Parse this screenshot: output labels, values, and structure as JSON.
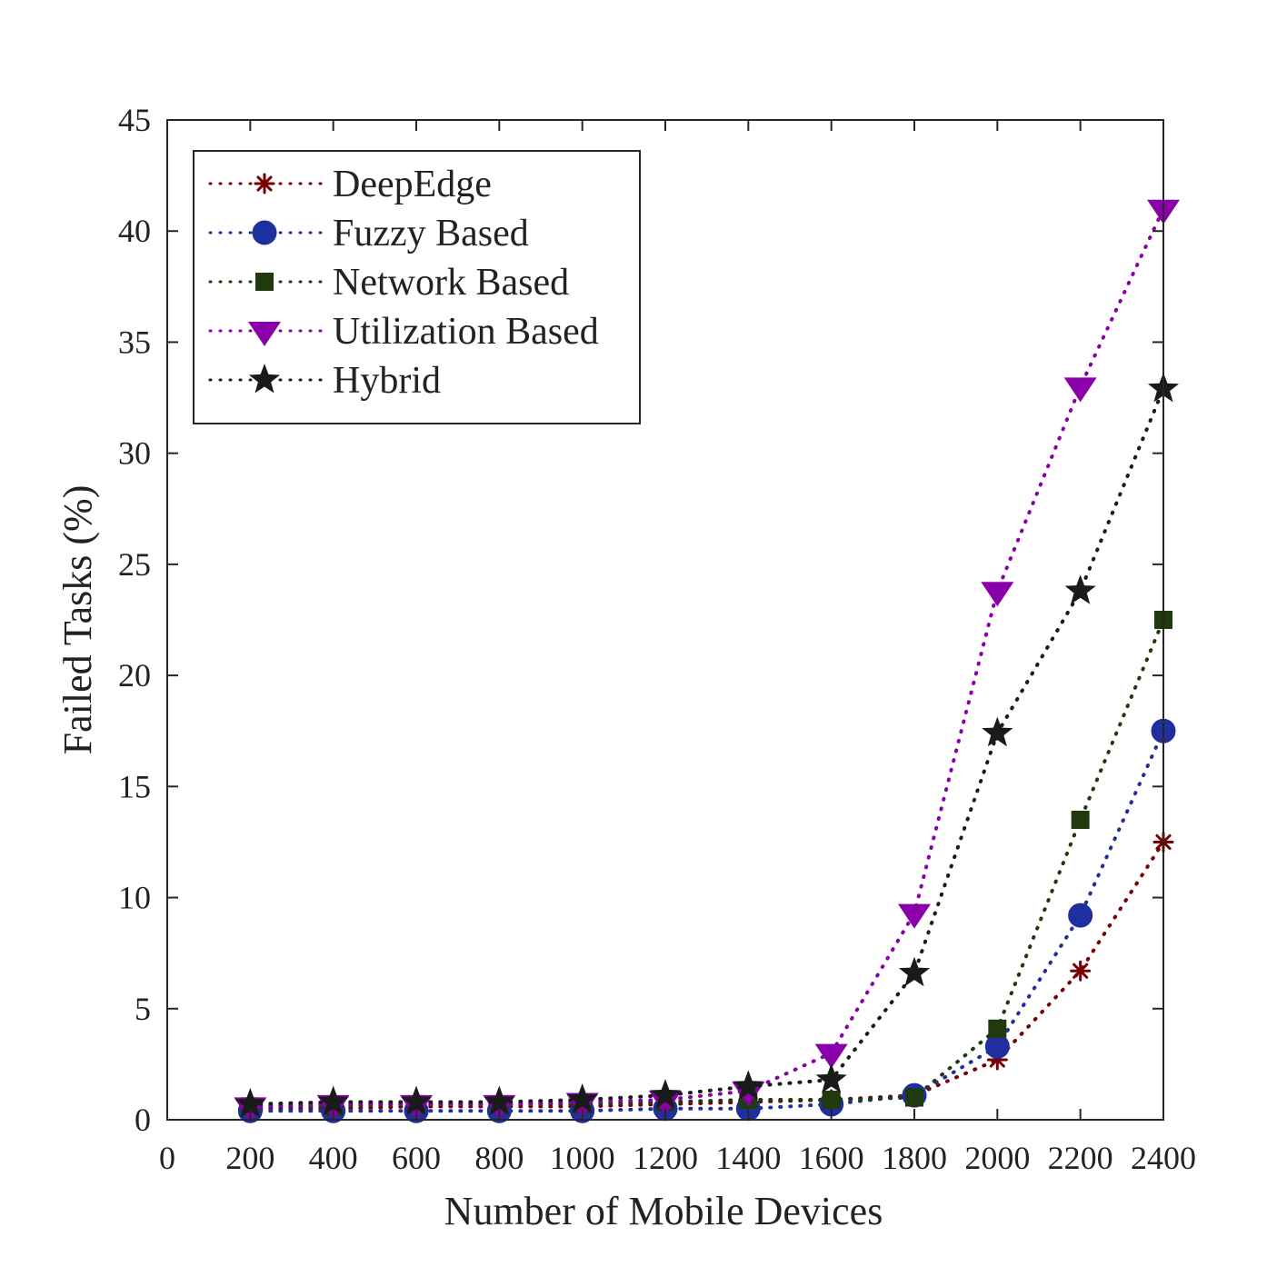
{
  "chart_data": {
    "type": "line",
    "xlabel": "Number of Mobile Devices",
    "ylabel": "Failed Tasks (%)",
    "xlim": [
      0,
      2400
    ],
    "ylim": [
      0,
      45
    ],
    "x_ticks": [
      0,
      200,
      400,
      600,
      800,
      1000,
      1200,
      1400,
      1600,
      1800,
      2000,
      2200,
      2400
    ],
    "y_ticks": [
      0,
      5,
      10,
      15,
      20,
      25,
      30,
      35,
      40,
      45
    ],
    "grid": false,
    "legend_position": "top-left",
    "x": [
      200,
      400,
      600,
      800,
      1000,
      1200,
      1400,
      1600,
      1800,
      2000,
      2200,
      2400
    ],
    "series": [
      {
        "name": "DeepEdge",
        "marker": "asterisk",
        "color": "#7a0000",
        "values": [
          0.5,
          0.5,
          0.6,
          0.6,
          0.6,
          0.7,
          0.8,
          0.9,
          1.1,
          2.7,
          6.7,
          12.5
        ]
      },
      {
        "name": "Fuzzy Based",
        "marker": "circle",
        "color": "#1f2f9e",
        "values": [
          0.4,
          0.4,
          0.4,
          0.4,
          0.4,
          0.5,
          0.5,
          0.7,
          1.1,
          3.3,
          9.2,
          17.5
        ]
      },
      {
        "name": "Network Based",
        "marker": "square",
        "color": "#203a0d",
        "values": [
          0.6,
          0.6,
          0.7,
          0.7,
          0.7,
          0.8,
          0.9,
          0.9,
          1.0,
          4.1,
          13.5,
          22.5
        ]
      },
      {
        "name": "Utilization Based",
        "marker": "triangle-down",
        "color": "#8a00a8",
        "values": [
          0.6,
          0.7,
          0.7,
          0.7,
          0.8,
          0.9,
          1.3,
          3.0,
          9.3,
          23.8,
          33.0,
          41.0
        ]
      },
      {
        "name": "Hybrid",
        "marker": "star",
        "color": "#1a1a1a",
        "values": [
          0.7,
          0.8,
          0.8,
          0.8,
          0.9,
          1.1,
          1.5,
          1.8,
          6.6,
          17.4,
          23.8,
          32.9
        ]
      }
    ]
  }
}
